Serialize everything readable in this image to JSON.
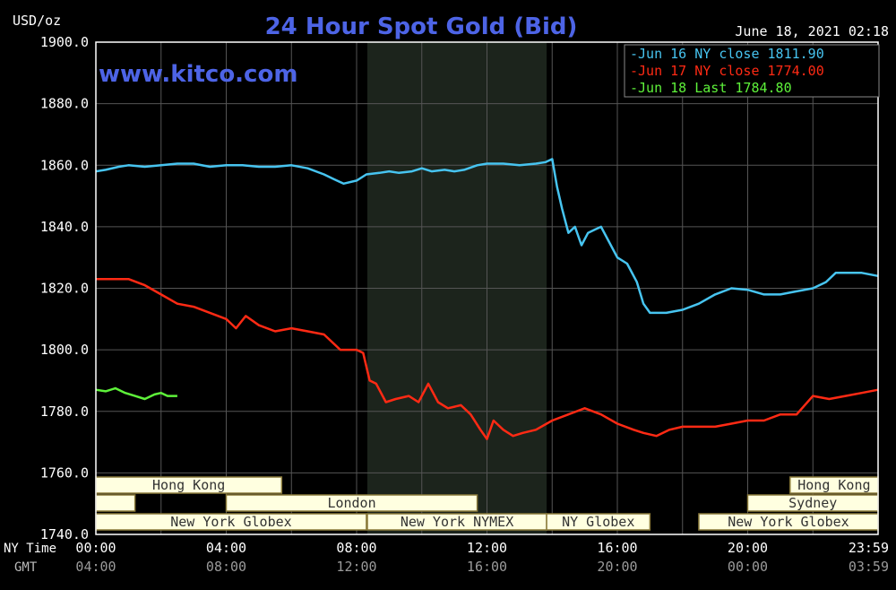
{
  "chart_data": {
    "type": "line",
    "title": "24 Hour Spot Gold (Bid)",
    "y_unit_label": "USD/oz",
    "timestamp": "June 18, 2021 02:18",
    "watermark": "www.kitco.com",
    "ylim": [
      1740,
      1900
    ],
    "y_ticks": [
      "1900.0",
      "1880.0",
      "1860.0",
      "1840.0",
      "1820.0",
      "1800.0",
      "1780.0",
      "1760.0",
      "1740.0"
    ],
    "x_range_hours": [
      0,
      24
    ],
    "x_row_label": "NY Time",
    "x_ticks": [
      "00:00",
      "04:00",
      "08:00",
      "12:00",
      "16:00",
      "20:00",
      "23:59"
    ],
    "gmt_row_label": "GMT",
    "gmt_ticks": [
      "04:00",
      "08:00",
      "12:00",
      "16:00",
      "20:00",
      "00:00",
      "03:59"
    ],
    "grid": true,
    "legend_position": "top-right",
    "colors": {
      "background": "#000000",
      "grid": "#555555",
      "title": "#4d64e6",
      "frame": "#ffffff",
      "shade": "#1c241c",
      "session_fill": "#ffffe0",
      "session_border": "#8a7a3a"
    },
    "shaded_region_hours": [
      8.33,
      13.83
    ],
    "series": [
      {
        "name": "Jun 16 NY close 1811.90",
        "color": "#47c4f0",
        "points": [
          [
            0,
            1858
          ],
          [
            0.3,
            1858.5
          ],
          [
            0.7,
            1859.5
          ],
          [
            1.0,
            1860
          ],
          [
            1.5,
            1859.5
          ],
          [
            2.0,
            1860
          ],
          [
            2.5,
            1860.5
          ],
          [
            3.0,
            1860.5
          ],
          [
            3.5,
            1859.5
          ],
          [
            4.0,
            1860
          ],
          [
            4.5,
            1860
          ],
          [
            5.0,
            1859.5
          ],
          [
            5.5,
            1859.5
          ],
          [
            6.0,
            1860
          ],
          [
            6.5,
            1859
          ],
          [
            7.0,
            1857
          ],
          [
            7.3,
            1855.5
          ],
          [
            7.6,
            1854
          ],
          [
            8.0,
            1855
          ],
          [
            8.3,
            1857
          ],
          [
            8.7,
            1857.5
          ],
          [
            9.0,
            1858
          ],
          [
            9.3,
            1857.5
          ],
          [
            9.7,
            1858
          ],
          [
            10.0,
            1859
          ],
          [
            10.3,
            1858
          ],
          [
            10.7,
            1858.5
          ],
          [
            11.0,
            1858
          ],
          [
            11.3,
            1858.5
          ],
          [
            11.7,
            1860
          ],
          [
            12.0,
            1860.5
          ],
          [
            12.5,
            1860.5
          ],
          [
            13.0,
            1860
          ],
          [
            13.5,
            1860.5
          ],
          [
            13.8,
            1861
          ],
          [
            14.0,
            1862
          ],
          [
            14.15,
            1853
          ],
          [
            14.3,
            1846
          ],
          [
            14.5,
            1838
          ],
          [
            14.7,
            1840
          ],
          [
            14.9,
            1834
          ],
          [
            15.1,
            1838
          ],
          [
            15.3,
            1839
          ],
          [
            15.5,
            1840
          ],
          [
            15.7,
            1836
          ],
          [
            16.0,
            1830
          ],
          [
            16.3,
            1828
          ],
          [
            16.6,
            1822
          ],
          [
            16.8,
            1815
          ],
          [
            17.0,
            1812
          ],
          [
            17.5,
            1812
          ],
          [
            18.0,
            1813
          ],
          [
            18.5,
            1815
          ],
          [
            19.0,
            1818
          ],
          [
            19.5,
            1820
          ],
          [
            20.0,
            1819.5
          ],
          [
            20.5,
            1818
          ],
          [
            21.0,
            1818
          ],
          [
            21.5,
            1819
          ],
          [
            22.0,
            1820
          ],
          [
            22.4,
            1822
          ],
          [
            22.7,
            1825
          ],
          [
            23.0,
            1825
          ],
          [
            23.5,
            1825
          ],
          [
            24.0,
            1824
          ]
        ]
      },
      {
        "name": "Jun 17 NY close 1774.00",
        "color": "#ff2a14",
        "points": [
          [
            0,
            1823
          ],
          [
            0.5,
            1823
          ],
          [
            1.0,
            1823
          ],
          [
            1.5,
            1821
          ],
          [
            2.0,
            1818
          ],
          [
            2.5,
            1815
          ],
          [
            3.0,
            1814
          ],
          [
            3.5,
            1812
          ],
          [
            4.0,
            1810
          ],
          [
            4.3,
            1807
          ],
          [
            4.6,
            1811
          ],
          [
            5.0,
            1808
          ],
          [
            5.5,
            1806
          ],
          [
            6.0,
            1807
          ],
          [
            6.5,
            1806
          ],
          [
            7.0,
            1805
          ],
          [
            7.5,
            1800
          ],
          [
            8.0,
            1800
          ],
          [
            8.2,
            1799
          ],
          [
            8.4,
            1790
          ],
          [
            8.6,
            1789
          ],
          [
            8.9,
            1783
          ],
          [
            9.2,
            1784
          ],
          [
            9.6,
            1785
          ],
          [
            9.9,
            1783
          ],
          [
            10.2,
            1789
          ],
          [
            10.5,
            1783
          ],
          [
            10.8,
            1781
          ],
          [
            11.2,
            1782
          ],
          [
            11.5,
            1779
          ],
          [
            11.8,
            1774
          ],
          [
            12.0,
            1771
          ],
          [
            12.2,
            1777
          ],
          [
            12.5,
            1774
          ],
          [
            12.8,
            1772
          ],
          [
            13.1,
            1773
          ],
          [
            13.5,
            1774
          ],
          [
            14.0,
            1777
          ],
          [
            14.5,
            1779
          ],
          [
            15.0,
            1781
          ],
          [
            15.5,
            1779
          ],
          [
            16.0,
            1776
          ],
          [
            16.5,
            1774
          ],
          [
            16.8,
            1773
          ],
          [
            17.2,
            1772
          ],
          [
            17.6,
            1774
          ],
          [
            18.0,
            1775
          ],
          [
            18.5,
            1775
          ],
          [
            19.0,
            1775
          ],
          [
            19.5,
            1776
          ],
          [
            20.0,
            1777
          ],
          [
            20.5,
            1777
          ],
          [
            21.0,
            1779
          ],
          [
            21.5,
            1779
          ],
          [
            22.0,
            1785
          ],
          [
            22.5,
            1784
          ],
          [
            23.0,
            1785
          ],
          [
            23.5,
            1786
          ],
          [
            24.0,
            1787
          ]
        ]
      },
      {
        "name": "Jun 18 Last 1784.80",
        "color": "#5ef23a",
        "points": [
          [
            0,
            1787
          ],
          [
            0.3,
            1786.5
          ],
          [
            0.6,
            1787.5
          ],
          [
            0.9,
            1786
          ],
          [
            1.2,
            1785
          ],
          [
            1.5,
            1784
          ],
          [
            1.8,
            1785.5
          ],
          [
            2.0,
            1786
          ],
          [
            2.2,
            1785
          ],
          [
            2.5,
            1785
          ]
        ]
      }
    ],
    "sessions": [
      {
        "label": "Hong Kong",
        "row": 0,
        "start": 0.0,
        "end": 5.7
      },
      {
        "label": "Hong Kong",
        "row": 0,
        "start": 21.3,
        "end": 24.0
      },
      {
        "label": "",
        "row": 1,
        "start": 0.0,
        "end": 1.2
      },
      {
        "label": "London",
        "row": 1,
        "start": 4.0,
        "end": 11.7
      },
      {
        "label": "Sydney",
        "row": 1,
        "start": 20.0,
        "end": 24.0
      },
      {
        "label": "New York Globex",
        "row": 2,
        "start": 0.0,
        "end": 8.3
      },
      {
        "label": "New York NYMEX",
        "row": 2,
        "start": 8.33,
        "end": 13.83
      },
      {
        "label": "NY Globex",
        "row": 2,
        "start": 13.83,
        "end": 17.0
      },
      {
        "label": "New York Globex",
        "row": 2,
        "start": 18.5,
        "end": 24.0
      }
    ]
  }
}
